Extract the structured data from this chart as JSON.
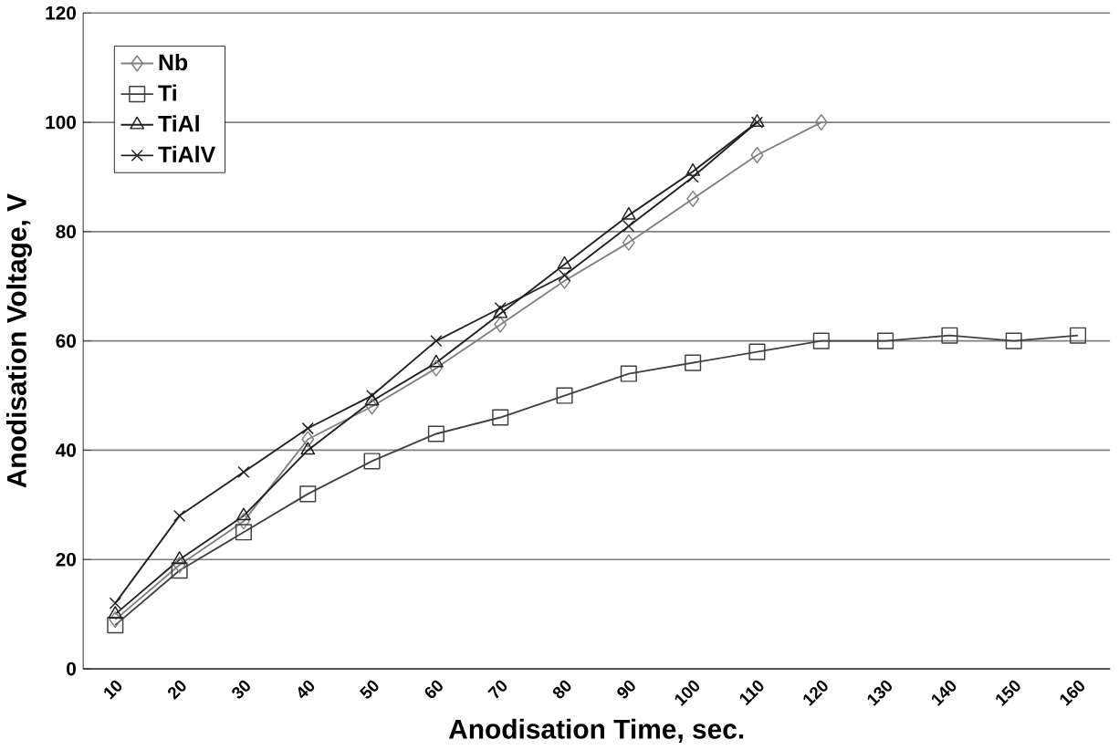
{
  "chart_data": {
    "type": "line",
    "xlabel": "Anodisation Time, sec.",
    "ylabel": "Anodisation Voltage, V",
    "categories": [
      "10",
      "20",
      "30",
      "40",
      "50",
      "60",
      "70",
      "80",
      "90",
      "100",
      "110",
      "120",
      "130",
      "140",
      "150",
      "160"
    ],
    "series": [
      {
        "name": "Nb",
        "color": "#808080",
        "marker": "diamond",
        "values": [
          9,
          19,
          27,
          42,
          48,
          55,
          63,
          71,
          78,
          86,
          94,
          100,
          null,
          null,
          null,
          null
        ]
      },
      {
        "name": "Ti",
        "color": "#404040",
        "marker": "square",
        "values": [
          8,
          18,
          25,
          32,
          38,
          43,
          46,
          50,
          54,
          56,
          58,
          60,
          60,
          61,
          60,
          61
        ]
      },
      {
        "name": "TiAl",
        "color": "#202020",
        "marker": "triangle",
        "values": [
          10,
          20,
          28,
          40,
          49,
          56,
          65,
          74,
          83,
          91,
          100,
          null,
          null,
          null,
          null,
          null
        ]
      },
      {
        "name": "TiAlV",
        "color": "#202020",
        "marker": "cross",
        "values": [
          12,
          28,
          36,
          44,
          50,
          60,
          66,
          72,
          81,
          90,
          100,
          null,
          null,
          null,
          null,
          null
        ]
      }
    ],
    "ylim": [
      0,
      120
    ],
    "yticks": [
      0,
      20,
      40,
      60,
      80,
      100,
      120
    ],
    "grid": "y",
    "legend": "top left",
    "line_style": "solid"
  }
}
